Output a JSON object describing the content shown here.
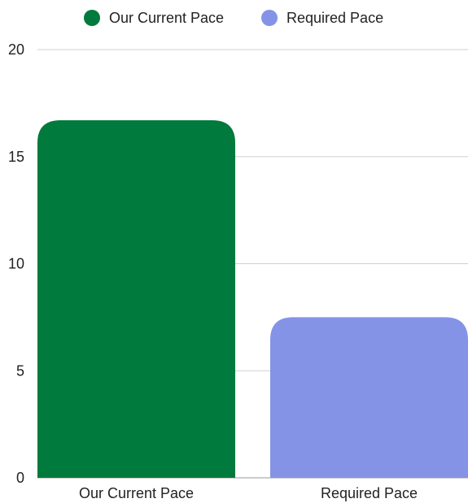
{
  "chart_data": {
    "type": "bar",
    "title": "",
    "xlabel": "",
    "ylabel": "",
    "categories": [
      "Our Current Pace",
      "Required Pace"
    ],
    "values": [
      16.7,
      7.5
    ],
    "colors": [
      "#007A3D",
      "#8493E6"
    ],
    "ylim": [
      0,
      20
    ],
    "yticks": [
      0,
      5,
      10,
      15,
      20
    ],
    "grid": true,
    "legend": {
      "placement": "top-center",
      "entries": [
        {
          "label": "Our Current Pace",
          "color": "#007A3D"
        },
        {
          "label": "Required Pace",
          "color": "#8493E6"
        }
      ]
    }
  }
}
